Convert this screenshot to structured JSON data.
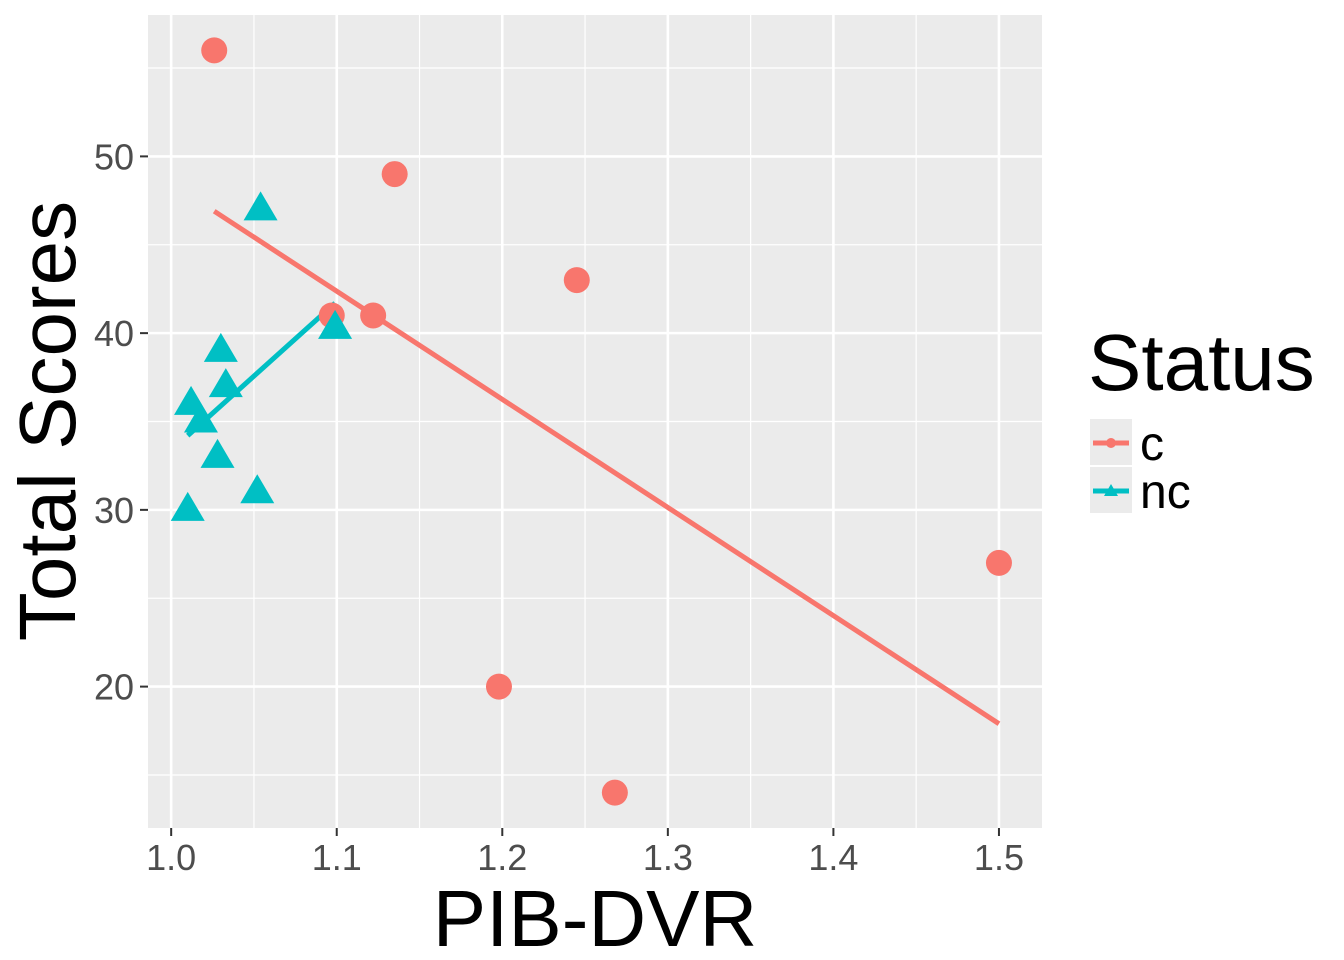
{
  "chart_data": {
    "type": "scatter",
    "title": "",
    "xlabel": "PIB-DVR",
    "ylabel": "Total Scores",
    "xlim": [
      0.986,
      1.526
    ],
    "ylim": [
      12.0,
      58.0
    ],
    "x_ticks": [
      "1.0",
      "1.1",
      "1.2",
      "1.3",
      "1.4",
      "1.5"
    ],
    "y_ticks": [
      "20",
      "30",
      "40",
      "50"
    ],
    "grid": true,
    "legend": {
      "title": "Status",
      "placement": "right"
    },
    "series": [
      {
        "name": "c",
        "color": "#F8766D",
        "marker": "circle",
        "points": [
          {
            "x": 1.026,
            "y": 56
          },
          {
            "x": 1.135,
            "y": 49
          },
          {
            "x": 1.245,
            "y": 43
          },
          {
            "x": 1.097,
            "y": 41
          },
          {
            "x": 1.122,
            "y": 41
          },
          {
            "x": 1.5,
            "y": 27
          },
          {
            "x": 1.198,
            "y": 20
          },
          {
            "x": 1.268,
            "y": 14
          }
        ],
        "fit_line": [
          {
            "x": 1.026,
            "y": 46.9
          },
          {
            "x": 1.5,
            "y": 17.9
          }
        ]
      },
      {
        "name": "nc",
        "color": "#00BFC4",
        "marker": "triangle",
        "points": [
          {
            "x": 1.054,
            "y": 47
          },
          {
            "x": 1.03,
            "y": 39
          },
          {
            "x": 1.099,
            "y": 40.3
          },
          {
            "x": 1.033,
            "y": 37
          },
          {
            "x": 1.012,
            "y": 36
          },
          {
            "x": 1.018,
            "y": 35
          },
          {
            "x": 1.028,
            "y": 33
          },
          {
            "x": 1.052,
            "y": 31
          },
          {
            "x": 1.01,
            "y": 30
          }
        ],
        "fit_line": [
          {
            "x": 1.01,
            "y": 34.2
          },
          {
            "x": 1.099,
            "y": 41.7
          }
        ]
      }
    ]
  }
}
